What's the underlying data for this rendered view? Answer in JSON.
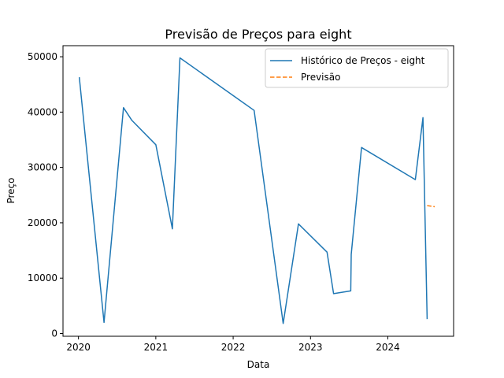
{
  "chart_data": {
    "type": "line",
    "title": "Previsão de Preços para eight",
    "xlabel": "Data",
    "ylabel": "Preço",
    "x_ticks": [
      "2020",
      "2021",
      "2022",
      "2023",
      "2024"
    ],
    "y_ticks": [
      "0",
      "10000",
      "20000",
      "30000",
      "40000",
      "50000"
    ],
    "legend_position": "top-right",
    "grid": false,
    "series": [
      {
        "name": "Histórico de Preços - eight",
        "color": "#1f77b4",
        "style": "solid",
        "points": [
          {
            "x": "2020-01-05",
            "y": 46300
          },
          {
            "x": "2020-05-01",
            "y": 2000
          },
          {
            "x": "2020-08-01",
            "y": 40800
          },
          {
            "x": "2020-09-10",
            "y": 38500
          },
          {
            "x": "2021-01-01",
            "y": 34100
          },
          {
            "x": "2021-03-20",
            "y": 18900
          },
          {
            "x": "2021-04-25",
            "y": 49800
          },
          {
            "x": "2022-04-10",
            "y": 40300
          },
          {
            "x": "2022-08-25",
            "y": 1800
          },
          {
            "x": "2022-11-05",
            "y": 19800
          },
          {
            "x": "2023-03-20",
            "y": 14700
          },
          {
            "x": "2023-04-20",
            "y": 7200
          },
          {
            "x": "2023-07-10",
            "y": 7700
          },
          {
            "x": "2023-07-12",
            "y": 14300
          },
          {
            "x": "2023-08-30",
            "y": 33600
          },
          {
            "x": "2024-05-10",
            "y": 27800
          },
          {
            "x": "2024-06-15",
            "y": 39000
          },
          {
            "x": "2024-07-05",
            "y": 2600
          }
        ]
      },
      {
        "name": "Previsão",
        "color": "#ff7f0e",
        "style": "dashed",
        "points": [
          {
            "x": "2024-07-05",
            "y": 23100
          },
          {
            "x": "2024-08-10",
            "y": 22900
          }
        ]
      }
    ]
  }
}
